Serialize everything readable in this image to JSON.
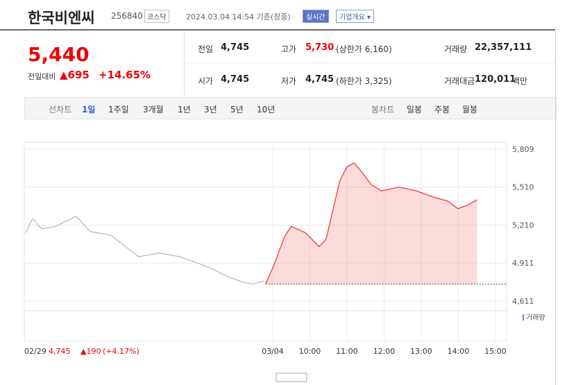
{
  "header": {
    "title": "한국비엔씨",
    "code": "256840",
    "market": "코스닥",
    "timestamp": "2024.03.04 14:54 기준(장중)",
    "realtime": "실시간",
    "company": "기업개요 ▾"
  },
  "quote": {
    "price": "5,440",
    "change_label": "전일대비",
    "change": "▲695",
    "change_pct": "+14.65%"
  },
  "info": [
    [
      "전일",
      "4,745"
    ],
    [
      "고가",
      "5,730",
      "(상한가 6,160)"
    ],
    [
      "거래량",
      "22,357,111"
    ],
    [
      "시가",
      "4,745"
    ],
    [
      "저가",
      "4,745",
      "(하한가 3,325)"
    ],
    [
      "거래대금",
      "120,011",
      "백만"
    ]
  ],
  "tabs": {
    "line_label": "선차트",
    "line": [
      "1일",
      "1주일",
      "3개월",
      "1년",
      "3년",
      "5년",
      "10년"
    ],
    "candle_label": "봉차트",
    "candle": [
      "일봉",
      "주봉",
      "월봉"
    ]
  },
  "chart_data": {
    "type": "line",
    "series": [
      {
        "name": "02/29",
        "color": "#bbbbbb",
        "x": [
          2.35,
          2.53,
          2.78,
          3.15,
          3.71,
          4.08,
          4.64,
          5.39,
          5.95,
          6.51,
          7.26,
          7.82,
          8.2,
          8.48,
          8.76
        ],
        "values": [
          5150,
          5260,
          5180,
          5200,
          5280,
          5160,
          5130,
          4960,
          4990,
          4960,
          4880,
          4800,
          4760,
          4745,
          4770
        ]
      },
      {
        "name": "03/04",
        "color": "#f03a3a",
        "x": [
          8.81,
          9.04,
          9.32,
          9.5,
          9.88,
          10.25,
          10.44,
          10.63,
          10.81,
          11.0,
          11.19,
          11.37,
          11.65,
          11.93,
          12.4,
          12.87,
          13.34,
          13.71,
          13.99,
          14.27,
          14.51
        ],
        "values": [
          4745,
          4900,
          5120,
          5200,
          5150,
          5040,
          5100,
          5340,
          5560,
          5670,
          5700,
          5640,
          5530,
          5480,
          5510,
          5480,
          5430,
          5400,
          5340,
          5370,
          5410
        ]
      }
    ],
    "reference_line": 4745,
    "xlim": [
      2.31,
      15.3
    ],
    "xticks": [
      {
        "value": 9,
        "label": "03/04"
      },
      {
        "value": 10,
        "label": "10:00"
      },
      {
        "value": 11,
        "label": "11:00"
      },
      {
        "value": 12,
        "label": "12:00"
      },
      {
        "value": 13,
        "label": "13:00"
      },
      {
        "value": 14,
        "label": "14:00"
      },
      {
        "value": 15,
        "label": "15:00"
      }
    ],
    "ylim": [
      4611,
      5809
    ],
    "yticks": [
      {
        "value": 4611,
        "label": "4,611"
      },
      {
        "value": 4911,
        "label": "4,911"
      },
      {
        "value": 5210,
        "label": "5,210"
      },
      {
        "value": 5510,
        "label": "5,510"
      },
      {
        "value": 5809,
        "label": "5,809"
      }
    ],
    "grid": true,
    "volume_label": "거래량",
    "prev_legend": [
      "02/29",
      "4,745",
      "▲190",
      "(+4.17%)"
    ]
  }
}
